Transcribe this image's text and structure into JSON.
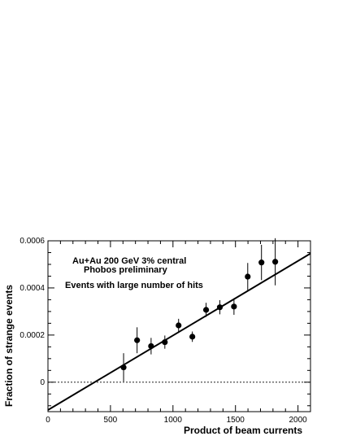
{
  "chart_data": {
    "type": "scatter",
    "xlabel": "Product of beam currents",
    "ylabel": "Fraction of strange events",
    "xlim": [
      0,
      2100
    ],
    "ylim": [
      -0.000125,
      0.0006
    ],
    "x_ticks": [
      0,
      500,
      1000,
      1500,
      2000
    ],
    "x_tick_labels": [
      "0",
      "500",
      "1000",
      "1500",
      "2000"
    ],
    "y_ticks": [
      0,
      0.0002,
      0.0004,
      0.0006
    ],
    "y_tick_labels": [
      "0",
      "0.0002",
      "0.0004",
      "0.0006"
    ],
    "annotations": [
      "Au+Au 200 GeV  3% central",
      "Phobos preliminary",
      "Events with large number of hits"
    ],
    "grid": false,
    "zero_line": "dashed",
    "points": [
      {
        "x": 605,
        "y": 6.3e-05,
        "err": 6e-05
      },
      {
        "x": 713,
        "y": 0.000178,
        "err": 5.5e-05
      },
      {
        "x": 825,
        "y": 0.000153,
        "err": 3.5e-05
      },
      {
        "x": 935,
        "y": 0.00017,
        "err": 2.8e-05
      },
      {
        "x": 1045,
        "y": 0.000241,
        "err": 2.8e-05
      },
      {
        "x": 1155,
        "y": 0.000193,
        "err": 2.2e-05
      },
      {
        "x": 1265,
        "y": 0.000307,
        "err": 3e-05
      },
      {
        "x": 1375,
        "y": 0.000318,
        "err": 3e-05
      },
      {
        "x": 1488,
        "y": 0.000321,
        "err": 3.5e-05
      },
      {
        "x": 1598,
        "y": 0.000448,
        "err": 5.8e-05
      },
      {
        "x": 1708,
        "y": 0.000508,
        "err": 7.5e-05
      },
      {
        "x": 1818,
        "y": 0.000511,
        "err": 0.0001
      }
    ],
    "fit_line": {
      "x": [
        0,
        2100
      ],
      "y": [
        -0.000118,
        0.000546
      ]
    }
  }
}
